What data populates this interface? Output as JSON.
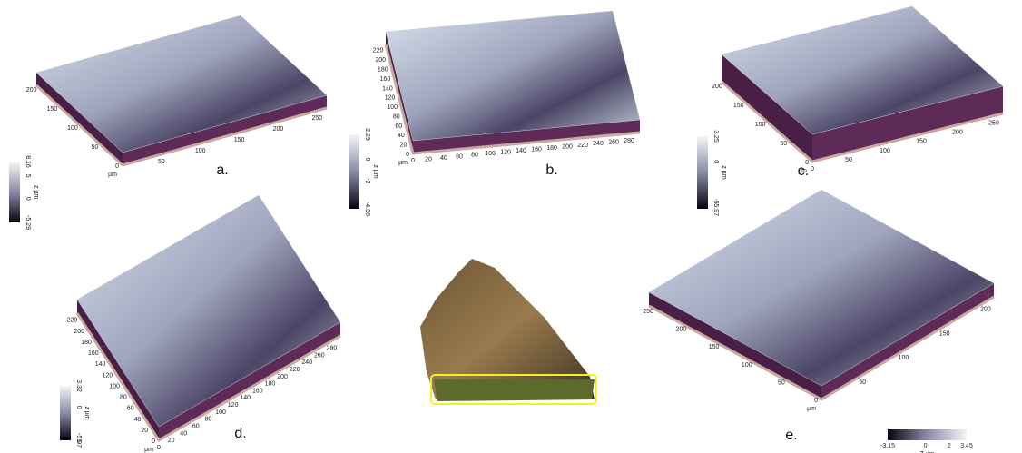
{
  "panels": [
    {
      "label": "a.",
      "unit": "µm",
      "yticks": [
        0,
        50,
        100,
        150,
        200
      ],
      "xticks": [
        50,
        100,
        150,
        200,
        250
      ],
      "colorbar": {
        "ticks": [
          8.16,
          5,
          0,
          -5.29
        ],
        "unit": "z µm"
      }
    },
    {
      "label": "b.",
      "unit": "µm",
      "yticks": [
        0,
        20,
        40,
        60,
        80,
        100,
        120,
        140,
        160,
        180,
        200,
        220
      ],
      "xticks": [
        0,
        20,
        40,
        60,
        80,
        100,
        120,
        140,
        160,
        180,
        200,
        220,
        240,
        260,
        280
      ],
      "colorbar": {
        "ticks": [
          2.29,
          0,
          -2,
          -4.56
        ],
        "unit": "z µm"
      }
    },
    {
      "label": "c.",
      "unit": "µm",
      "yticks": [
        0,
        50,
        100,
        150,
        200
      ],
      "xticks": [
        0,
        50,
        100,
        150,
        200,
        250
      ],
      "colorbar": {
        "ticks": [
          3.25,
          0,
          -5,
          -5.97
        ],
        "unit": "z µm"
      }
    },
    {
      "label": "d.",
      "unit": "µm",
      "yticks": [
        0,
        20,
        40,
        60,
        80,
        100,
        120,
        140,
        160,
        180,
        200,
        220
      ],
      "xticks": [
        0,
        20,
        40,
        60,
        80,
        100,
        120,
        140,
        160,
        180,
        200,
        220,
        240,
        260,
        280
      ],
      "colorbar": {
        "ticks": [
          3.32,
          0,
          -5,
          -5.07
        ],
        "unit": "z µm"
      }
    },
    {
      "label": "e.",
      "unit": "µm",
      "yticks": [
        0,
        50,
        100,
        150,
        200,
        250
      ],
      "xticks": [
        50,
        100,
        150,
        200
      ],
      "colorbar": {
        "ticks": [
          -3.15,
          0,
          2,
          3.45
        ],
        "unit": "Z µm"
      }
    }
  ]
}
